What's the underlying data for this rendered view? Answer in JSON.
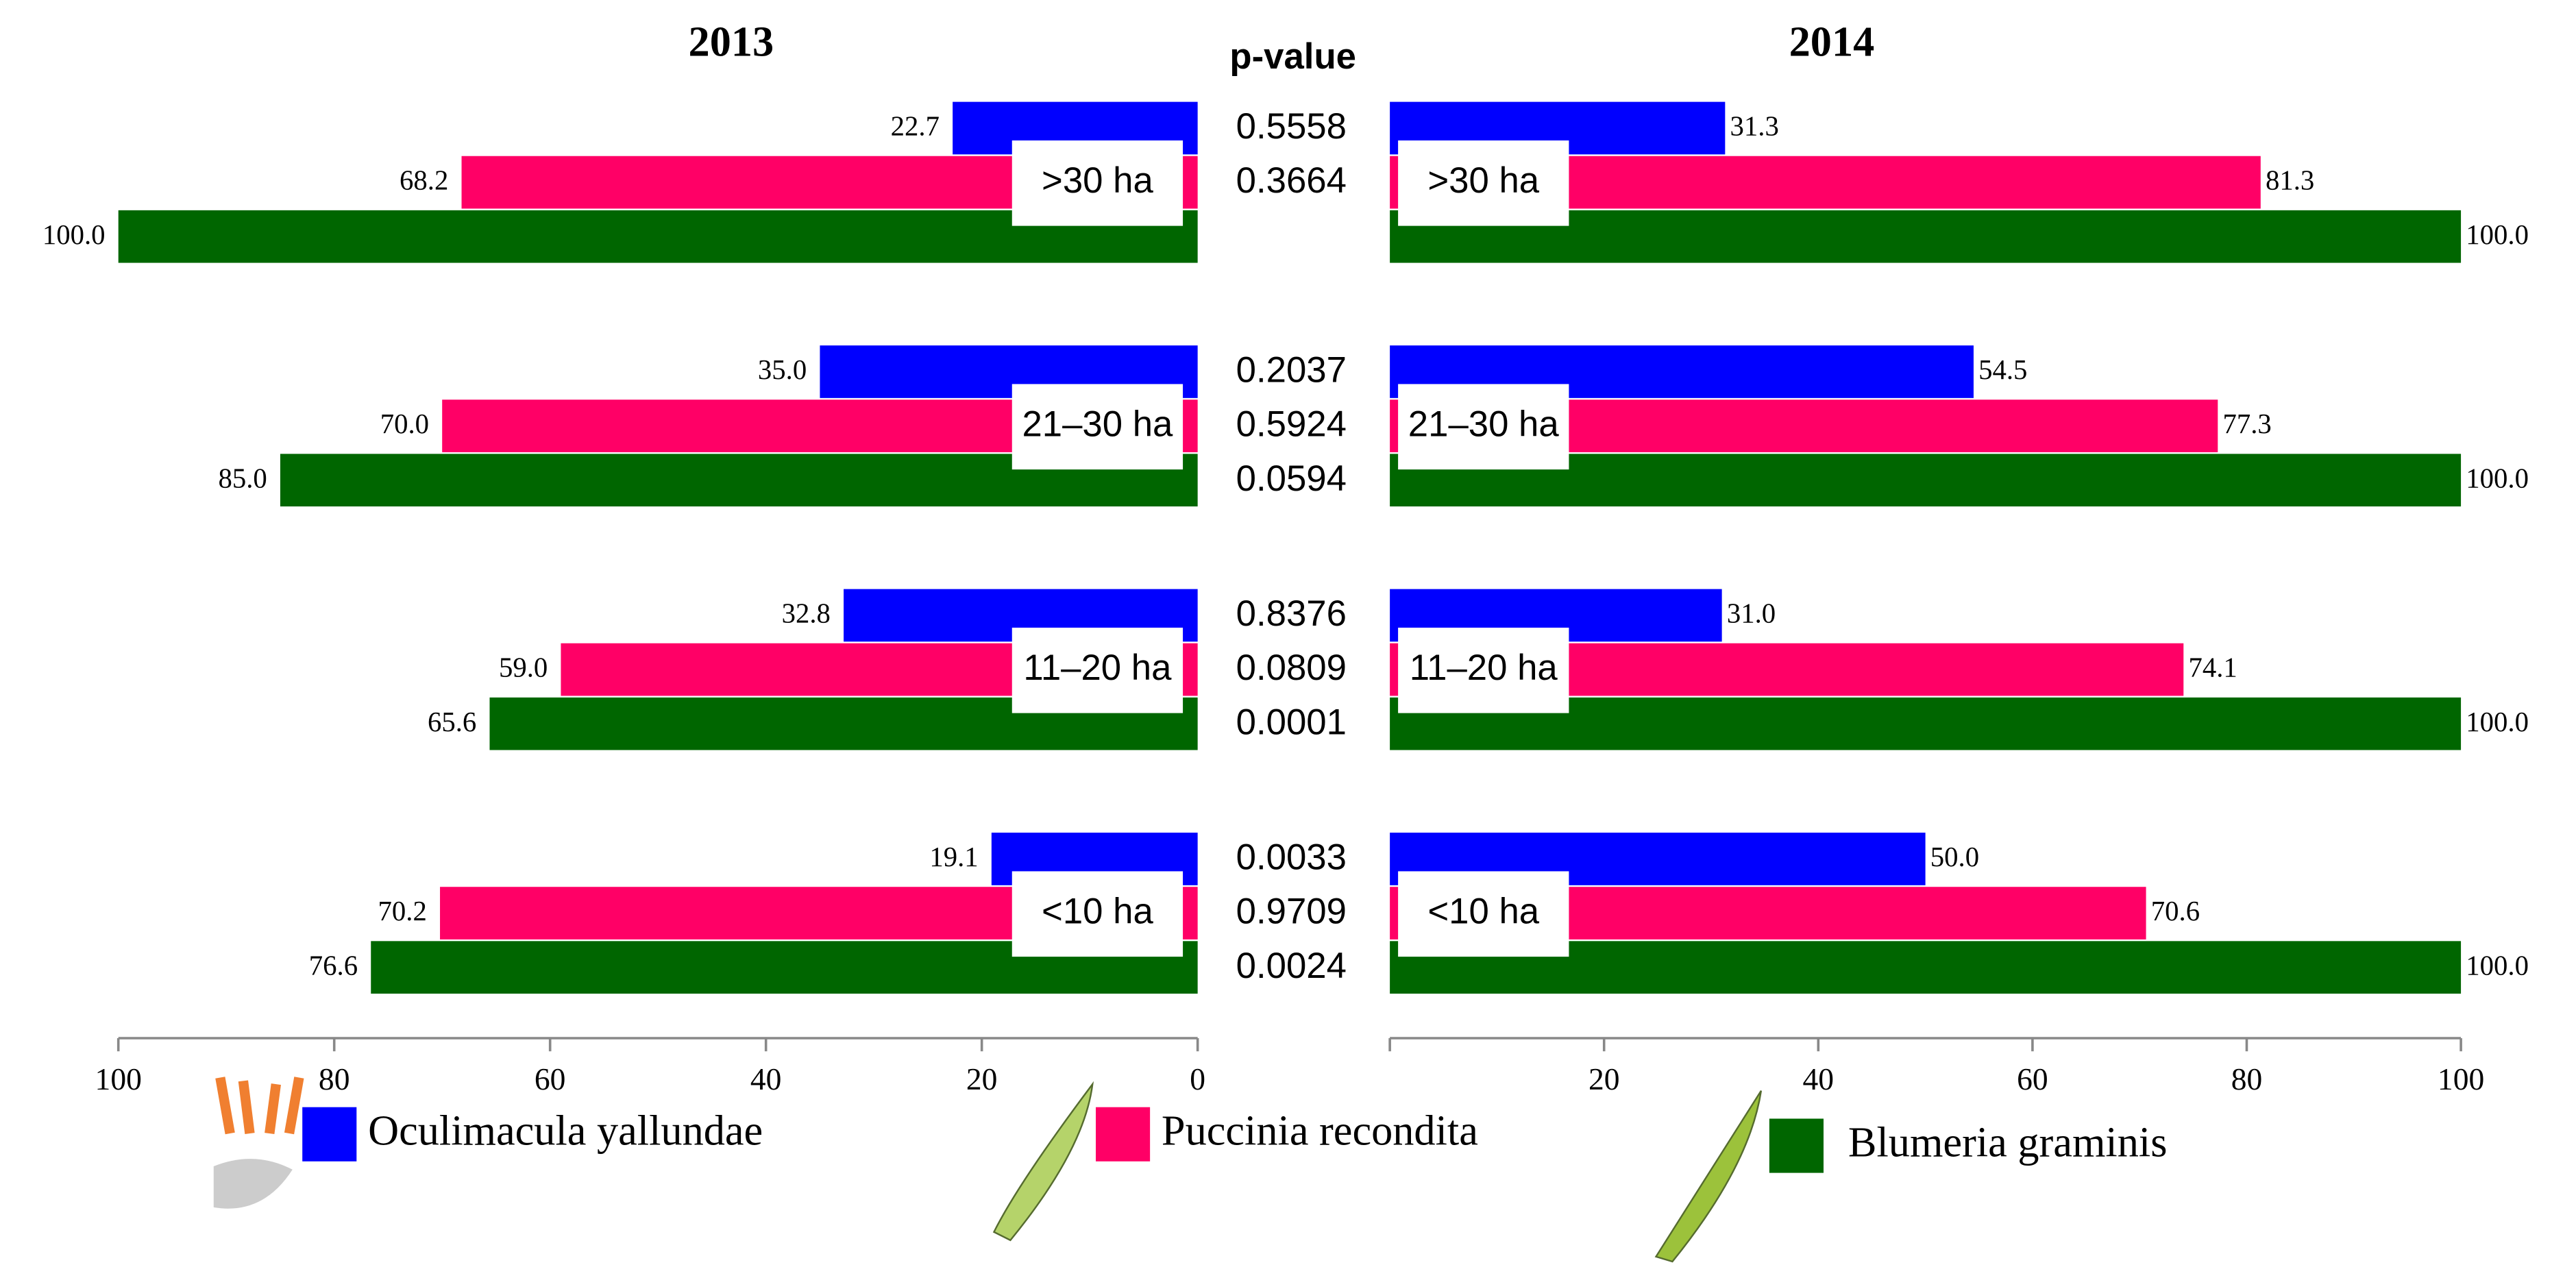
{
  "chart_data": [
    {
      "type": "bar",
      "orientation": "horizontal",
      "title": "2013",
      "categories": [
        ">30 ha",
        "21–30 ha",
        "11–20 ha",
        "<10 ha"
      ],
      "xlim": [
        100,
        0
      ],
      "xticks": [
        0,
        20,
        40,
        60,
        80,
        100
      ],
      "series": [
        {
          "name": "Oculimacula yallundae",
          "color": "#0000ff",
          "values": [
            22.7,
            35.0,
            32.8,
            19.1
          ],
          "value_labels": [
            "22.7",
            "35.0",
            "32.8",
            "19.1"
          ]
        },
        {
          "name": "Puccinia recondita",
          "color": "#ff0066",
          "values": [
            68.2,
            70.0,
            59.0,
            70.2
          ],
          "value_labels": [
            "68.2",
            "70.0",
            "59.0",
            "70.2"
          ]
        },
        {
          "name": "Blumeria graminis",
          "color": "#006600",
          "values": [
            100.0,
            85.0,
            65.6,
            76.6
          ],
          "value_labels": [
            "100.0",
            "85.0",
            "65.6",
            "76.6"
          ]
        }
      ]
    },
    {
      "type": "bar",
      "orientation": "horizontal",
      "title": "2014",
      "categories": [
        ">30 ha",
        "21–30 ha",
        "11–20 ha",
        "<10 ha"
      ],
      "xlim": [
        0,
        100
      ],
      "xticks": [
        20,
        40,
        60,
        80,
        100
      ],
      "series": [
        {
          "name": "Oculimacula yallundae",
          "color": "#0000ff",
          "values": [
            31.3,
            54.5,
            31.0,
            50.0
          ],
          "value_labels": [
            "31.3",
            "54.5",
            "31.0",
            "50.0"
          ]
        },
        {
          "name": "Puccinia recondita",
          "color": "#ff0066",
          "values": [
            81.3,
            77.3,
            74.1,
            70.6
          ],
          "value_labels": [
            "81.3",
            "77.3",
            "74.1",
            "70.6"
          ]
        },
        {
          "name": "Blumeria graminis",
          "color": "#006600",
          "values": [
            100.0,
            100.0,
            100.0,
            100.0
          ],
          "value_labels": [
            "100.0",
            "100.0",
            "100.0",
            "100.0"
          ]
        }
      ]
    }
  ],
  "p_values": {
    "title": "p-value",
    "values": [
      [
        0.5558,
        0.3664
      ],
      [
        0.2037,
        0.5924,
        0.0594
      ],
      [
        0.8376,
        0.0809,
        0.0001
      ],
      [
        0.0033,
        0.9709,
        0.0024
      ]
    ]
  }
}
